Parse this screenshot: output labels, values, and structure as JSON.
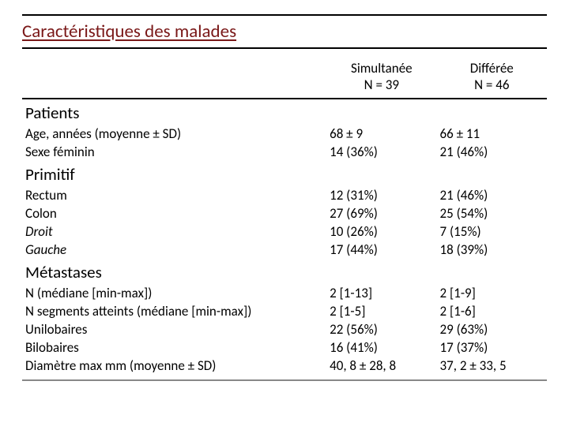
{
  "title": "Caractéristiques des malades",
  "columns": {
    "a": {
      "name": "Simultanée",
      "n": "N = 39"
    },
    "b": {
      "name": "Différée",
      "n": "N = 46"
    }
  },
  "sections": {
    "patients": {
      "header": "Patients",
      "age": {
        "label": "Age, années (moyenne ± SD)",
        "a": "68 ± 9",
        "b": "66 ± 11"
      },
      "sex": {
        "label": "Sexe féminin",
        "a": "14 (36%)",
        "b": "21 (46%)"
      }
    },
    "primitif": {
      "header": "Primitif",
      "rectum": {
        "label": "Rectum",
        "a": "12 (31%)",
        "b": "21 (46%)"
      },
      "colon": {
        "label": "Colon",
        "a": "27 (69%)",
        "b": "25 (54%)"
      },
      "droit": {
        "label": "Droit",
        "a": "10 (26%)",
        "b": "7 (15%)"
      },
      "gauche": {
        "label": "Gauche",
        "a": "17 (44%)",
        "b": "18 (39%)"
      }
    },
    "metastases": {
      "header": "Métastases",
      "n": {
        "label": "N (médiane [min-max])",
        "a": "2 [1-13]",
        "b": "2 [1-9]"
      },
      "segments": {
        "label": "N segments atteints (médiane [min-max])",
        "a": "2 [1-5]",
        "b": "2 [1-6]"
      },
      "uni": {
        "label": "Unilobaires",
        "a": "22 (56%)",
        "b": "29 (63%)"
      },
      "bi": {
        "label": "Bilobaires",
        "a": "16 (41%)",
        "b": "17 (37%)"
      },
      "diam": {
        "label": "Diamètre max mm (moyenne ± SD)",
        "a": "40, 8 ± 28, 8",
        "b": "37, 2 ± 33, 5"
      }
    }
  },
  "colors": {
    "title": "#7a1818",
    "rule": "#000000",
    "bottom_rule": "#888888",
    "background": "#ffffff",
    "text": "#000000"
  },
  "fonts": {
    "title_size_pt": 23,
    "section_size_pt": 21,
    "body_size_pt": 17
  }
}
